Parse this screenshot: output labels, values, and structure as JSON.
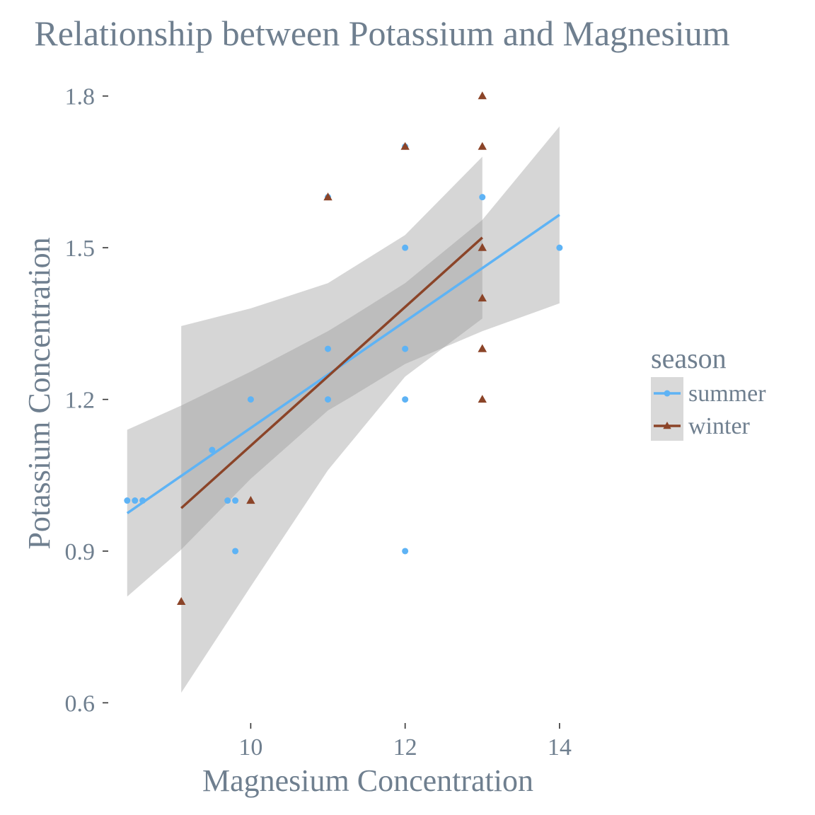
{
  "chart_data": {
    "type": "scatter",
    "title": "Relationship between Potassium and Magnesium",
    "xlabel": "Magnesium Concentration",
    "ylabel": "Potassium Concentration",
    "xlim": [
      8.2,
      15.0
    ],
    "ylim": [
      0.56,
      1.85
    ],
    "xticks": [
      10,
      12,
      14
    ],
    "yticks": [
      0.6,
      0.9,
      1.2,
      1.5,
      1.8
    ],
    "xtick_labels": [
      "10",
      "12",
      "14"
    ],
    "ytick_labels": [
      "0.6",
      "0.9",
      "1.2",
      "1.5",
      "1.8"
    ],
    "grid": false,
    "legend": {
      "title": "season",
      "position": "right",
      "entries": [
        "summer",
        "winter"
      ]
    },
    "series": [
      {
        "name": "summer",
        "color": "#5eb3f5",
        "marker": "circle",
        "points": [
          [
            8.4,
            1.0
          ],
          [
            8.5,
            1.0
          ],
          [
            8.6,
            1.0
          ],
          [
            9.5,
            1.1
          ],
          [
            9.7,
            1.0
          ],
          [
            9.8,
            1.0
          ],
          [
            9.8,
            0.9
          ],
          [
            10,
            1.2
          ],
          [
            11,
            1.3
          ],
          [
            11,
            1.2
          ],
          [
            11,
            1.6
          ],
          [
            12,
            1.7
          ],
          [
            12,
            1.5
          ],
          [
            12,
            1.3
          ],
          [
            12,
            1.2
          ],
          [
            12,
            0.9
          ],
          [
            13,
            1.6
          ],
          [
            14,
            1.5
          ]
        ],
        "fit": {
          "x_start": 8.4,
          "y_start": 0.975,
          "x_end": 14.0,
          "y_end": 1.565
        },
        "band": {
          "x": [
            8.4,
            9.1,
            10,
            11,
            11.3,
            12,
            13,
            14
          ],
          "upper": [
            1.14,
            1.188,
            1.255,
            1.335,
            1.363,
            1.43,
            1.555,
            1.74
          ],
          "lower": [
            0.81,
            0.903,
            1.043,
            1.178,
            1.205,
            1.27,
            1.335,
            1.39
          ]
        }
      },
      {
        "name": "winter",
        "color": "#8b4428",
        "marker": "triangle",
        "points": [
          [
            9.1,
            0.8
          ],
          [
            10,
            1.0
          ],
          [
            11,
            1.6
          ],
          [
            12,
            1.7
          ],
          [
            13,
            1.8
          ],
          [
            13,
            1.7
          ],
          [
            13,
            1.5
          ],
          [
            13,
            1.4
          ],
          [
            13,
            1.3
          ],
          [
            13,
            1.3
          ],
          [
            13,
            1.2
          ]
        ],
        "fit": {
          "x_start": 9.1,
          "y_start": 0.985,
          "x_end": 13.0,
          "y_end": 1.52
        },
        "band": {
          "x": [
            9.1,
            10,
            11,
            12,
            13
          ],
          "upper": [
            1.345,
            1.38,
            1.43,
            1.525,
            1.68
          ],
          "lower": [
            0.62,
            0.83,
            1.06,
            1.245,
            1.36
          ]
        }
      }
    ]
  }
}
